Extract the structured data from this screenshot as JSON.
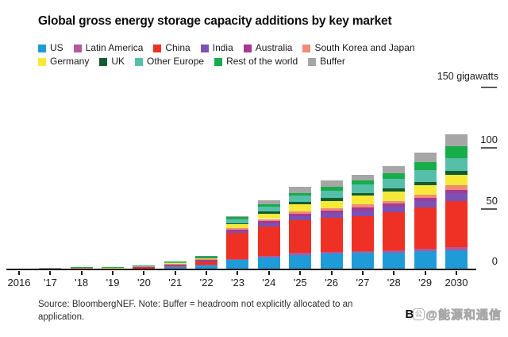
{
  "header": {
    "title": "Global gross energy storage capacity additions by key market"
  },
  "chart_data": {
    "type": "bar",
    "stacked": true,
    "title": "Global gross energy storage capacity additions by key market",
    "unit": "gigawatts",
    "unit_label": "150 gigawatts",
    "grid": false,
    "legend_position": "top",
    "ylim": [
      0,
      150
    ],
    "yticks": [
      {
        "value": 0,
        "label": "0",
        "dash": false
      },
      {
        "value": 50,
        "label": "50",
        "dash": true
      },
      {
        "value": 100,
        "label": "100",
        "dash": true
      },
      {
        "value": 150,
        "label": "",
        "dash": true
      }
    ],
    "categories": [
      "2016",
      "'17",
      "'18",
      "'19",
      "'20",
      "'21",
      "'22",
      "'23",
      "'24",
      "'25",
      "'26",
      "'27",
      "'28",
      "'29",
      "2030"
    ],
    "legend_rows": [
      [
        0,
        1,
        2,
        3,
        4,
        5
      ],
      [
        6,
        7,
        8,
        9,
        10
      ]
    ],
    "series": [
      {
        "name": "US",
        "color": "#1f9cd8",
        "values": [
          0.2,
          0.2,
          0.3,
          0.4,
          0.8,
          2.2,
          3.5,
          8,
          10,
          12,
          13,
          13.5,
          14,
          15,
          16
        ]
      },
      {
        "name": "Latin America",
        "color": "#b2599e",
        "values": [
          0,
          0,
          0,
          0,
          0.1,
          0.1,
          0.2,
          0.8,
          1,
          1.5,
          1.5,
          1.5,
          2,
          2,
          2.5
        ]
      },
      {
        "name": "China",
        "color": "#ee3124",
        "values": [
          0.1,
          0.1,
          0.3,
          0.3,
          0.7,
          1.5,
          3.5,
          21,
          24,
          27,
          28,
          29,
          31,
          34,
          38
        ]
      },
      {
        "name": "India",
        "color": "#7a52b5",
        "values": [
          0,
          0,
          0,
          0,
          0.1,
          0.2,
          0.3,
          1.5,
          3,
          3.5,
          4,
          4.5,
          4.5,
          5,
          6
        ]
      },
      {
        "name": "Australia",
        "color": "#a53a92",
        "values": [
          0,
          0,
          0.1,
          0.1,
          0.2,
          0.3,
          0.3,
          1.2,
          2,
          2,
          2,
          2.5,
          2.5,
          2.5,
          3
        ]
      },
      {
        "name": "South Korea and Japan",
        "color": "#f08b77",
        "values": [
          0.2,
          0.3,
          1.0,
          0.5,
          0.6,
          0.5,
          0.5,
          1.5,
          1.5,
          2,
          2,
          2.5,
          2.5,
          3,
          3.5
        ]
      },
      {
        "name": "Germany",
        "color": "#f7e93a",
        "values": [
          0.1,
          0.2,
          0.2,
          0.3,
          0.5,
          0.8,
          1.2,
          3,
          4.5,
          5.5,
          6,
          7,
          7.5,
          8,
          9
        ]
      },
      {
        "name": "UK",
        "color": "#135c30",
        "values": [
          0,
          0,
          0,
          0,
          0.1,
          0.2,
          0.3,
          1,
          1.5,
          2,
          2.5,
          2.5,
          2.5,
          2.5,
          3
        ]
      },
      {
        "name": "Other Europe",
        "color": "#56bfa9",
        "values": [
          0.1,
          0.2,
          0.2,
          0.2,
          0.3,
          0.4,
          0.8,
          3,
          4,
          5,
          6,
          7,
          8,
          9.5,
          10.5
        ]
      },
      {
        "name": "Rest of the world",
        "color": "#16ad4a",
        "values": [
          0,
          0.1,
          0.1,
          0.3,
          0.1,
          0.3,
          0.4,
          2,
          2,
          2.5,
          3,
          3.5,
          4.5,
          6.5,
          10
        ]
      },
      {
        "name": "Buffer",
        "color": "#a6a6a6",
        "values": [
          0.1,
          0.3,
          0,
          0,
          0,
          0,
          0,
          0.5,
          3.5,
          5,
          5,
          4.5,
          6,
          8,
          9.5
        ]
      }
    ]
  },
  "source": {
    "text": "Source: BloombergNEF. Note: Buffer = headroom not explicitly allocated to an application."
  },
  "branding": {
    "logo_b": "B",
    "watermark_badge": "公",
    "watermark_text": "@能源和通信"
  }
}
